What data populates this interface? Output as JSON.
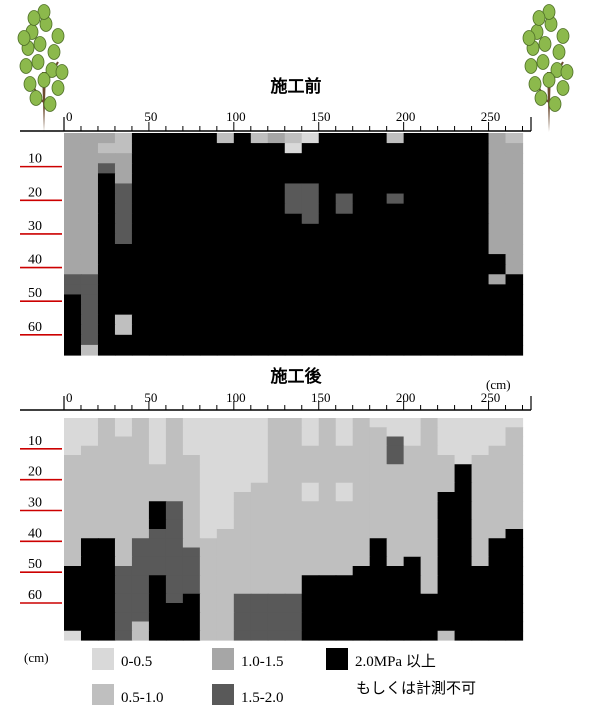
{
  "chart_data": [
    {
      "type": "heatmap",
      "title": "施工前",
      "xlabel": "",
      "ylabel": "",
      "x_ticks": [
        0,
        50,
        100,
        150,
        200,
        250
      ],
      "y_ticks": [
        10,
        20,
        30,
        40,
        50,
        60
      ],
      "xlim": [
        0,
        275
      ],
      "ylim": [
        0,
        63
      ],
      "column_width_cm": 10,
      "row_height_cm": 3,
      "classes": [
        0,
        1,
        2,
        3,
        4
      ],
      "grid": [
        [
          2,
          2,
          2,
          1,
          4,
          4,
          4,
          4,
          4,
          1,
          4,
          1,
          2,
          1,
          0,
          4,
          4,
          4,
          4,
          1,
          4,
          4,
          4,
          4,
          4,
          2,
          1
        ],
        [
          2,
          2,
          1,
          1,
          4,
          4,
          4,
          4,
          4,
          4,
          4,
          4,
          4,
          0,
          4,
          4,
          4,
          4,
          4,
          4,
          4,
          4,
          4,
          4,
          4,
          2,
          2
        ],
        [
          2,
          2,
          2,
          2,
          4,
          4,
          4,
          4,
          4,
          4,
          4,
          4,
          4,
          4,
          4,
          4,
          4,
          4,
          4,
          4,
          4,
          4,
          4,
          4,
          4,
          2,
          2
        ],
        [
          2,
          2,
          3,
          2,
          4,
          4,
          4,
          4,
          4,
          4,
          4,
          4,
          4,
          4,
          4,
          4,
          4,
          4,
          4,
          4,
          4,
          4,
          4,
          4,
          4,
          2,
          2
        ],
        [
          2,
          2,
          4,
          2,
          4,
          4,
          4,
          4,
          4,
          4,
          4,
          4,
          4,
          4,
          4,
          4,
          4,
          4,
          4,
          4,
          4,
          4,
          4,
          4,
          4,
          2,
          2
        ],
        [
          2,
          2,
          4,
          3,
          4,
          4,
          4,
          4,
          4,
          4,
          4,
          4,
          4,
          3,
          3,
          4,
          4,
          4,
          4,
          4,
          4,
          4,
          4,
          4,
          4,
          2,
          2
        ],
        [
          2,
          2,
          4,
          3,
          4,
          4,
          4,
          4,
          4,
          4,
          4,
          4,
          4,
          3,
          3,
          4,
          3,
          4,
          4,
          3,
          4,
          4,
          4,
          4,
          4,
          2,
          2
        ],
        [
          2,
          2,
          4,
          3,
          4,
          4,
          4,
          4,
          4,
          4,
          4,
          4,
          4,
          3,
          3,
          4,
          3,
          4,
          4,
          4,
          4,
          4,
          4,
          4,
          4,
          2,
          2
        ],
        [
          2,
          2,
          4,
          3,
          4,
          4,
          4,
          4,
          4,
          4,
          4,
          4,
          4,
          4,
          3,
          4,
          4,
          4,
          4,
          4,
          4,
          4,
          4,
          4,
          4,
          2,
          2
        ],
        [
          2,
          2,
          4,
          3,
          4,
          4,
          4,
          4,
          4,
          4,
          4,
          4,
          4,
          4,
          4,
          4,
          4,
          4,
          4,
          4,
          4,
          4,
          4,
          4,
          4,
          2,
          2
        ],
        [
          2,
          2,
          4,
          3,
          4,
          4,
          4,
          4,
          4,
          4,
          4,
          4,
          4,
          4,
          4,
          4,
          4,
          4,
          4,
          4,
          4,
          4,
          4,
          4,
          4,
          2,
          2
        ],
        [
          2,
          2,
          4,
          4,
          4,
          4,
          4,
          4,
          4,
          4,
          4,
          4,
          4,
          4,
          4,
          4,
          4,
          4,
          4,
          4,
          4,
          4,
          4,
          4,
          4,
          2,
          2
        ],
        [
          2,
          2,
          4,
          4,
          4,
          4,
          4,
          4,
          4,
          4,
          4,
          4,
          4,
          4,
          4,
          4,
          4,
          4,
          4,
          4,
          4,
          4,
          4,
          4,
          4,
          4,
          2
        ],
        [
          2,
          2,
          4,
          4,
          4,
          4,
          4,
          4,
          4,
          4,
          4,
          4,
          4,
          4,
          4,
          4,
          4,
          4,
          4,
          4,
          4,
          4,
          4,
          4,
          4,
          4,
          2
        ],
        [
          3,
          3,
          4,
          4,
          4,
          4,
          4,
          4,
          4,
          4,
          4,
          4,
          4,
          4,
          4,
          4,
          4,
          4,
          4,
          4,
          4,
          4,
          4,
          4,
          4,
          2,
          4
        ],
        [
          3,
          3,
          4,
          4,
          4,
          4,
          4,
          4,
          4,
          4,
          4,
          4,
          4,
          4,
          4,
          4,
          4,
          4,
          4,
          4,
          4,
          4,
          4,
          4,
          4,
          4,
          4
        ],
        [
          4,
          3,
          4,
          4,
          4,
          4,
          4,
          4,
          4,
          4,
          4,
          4,
          4,
          4,
          4,
          4,
          4,
          4,
          4,
          4,
          4,
          4,
          4,
          4,
          4,
          4,
          4
        ],
        [
          4,
          3,
          4,
          4,
          4,
          4,
          4,
          4,
          4,
          4,
          4,
          4,
          4,
          4,
          4,
          4,
          4,
          4,
          4,
          4,
          4,
          4,
          4,
          4,
          4,
          4,
          4
        ],
        [
          4,
          3,
          4,
          1,
          4,
          4,
          4,
          4,
          4,
          4,
          4,
          4,
          4,
          4,
          4,
          4,
          4,
          4,
          4,
          4,
          4,
          4,
          4,
          4,
          4,
          4,
          4
        ],
        [
          4,
          3,
          4,
          1,
          4,
          4,
          4,
          4,
          4,
          4,
          4,
          4,
          4,
          4,
          4,
          4,
          4,
          4,
          4,
          4,
          4,
          4,
          4,
          4,
          4,
          4,
          4
        ],
        [
          4,
          3,
          4,
          4,
          4,
          4,
          4,
          4,
          4,
          4,
          4,
          4,
          4,
          4,
          4,
          4,
          4,
          4,
          4,
          4,
          4,
          4,
          4,
          4,
          4,
          4,
          4
        ],
        [
          4,
          1,
          4,
          4,
          4,
          4,
          4,
          4,
          4,
          4,
          4,
          4,
          4,
          4,
          4,
          4,
          4,
          4,
          4,
          4,
          4,
          4,
          4,
          4,
          4,
          4,
          4
        ]
      ]
    },
    {
      "type": "heatmap",
      "title": "施工後",
      "xlabel": "",
      "ylabel": "",
      "x_ticks": [
        0,
        50,
        100,
        150,
        200,
        250
      ],
      "y_ticks": [
        10,
        20,
        30,
        40,
        50,
        60
      ],
      "xlim": [
        0,
        275
      ],
      "ylim": [
        0,
        63
      ],
      "column_width_cm": 10,
      "row_height_cm": 3,
      "classes": [
        0,
        1,
        2,
        3,
        4
      ],
      "grid": [
        [
          0,
          0,
          1,
          0,
          1,
          0,
          1,
          0,
          0,
          0,
          0,
          0,
          1,
          1,
          0,
          1,
          0,
          1,
          0,
          0,
          0,
          1,
          0,
          0,
          0,
          0,
          0
        ],
        [
          0,
          0,
          1,
          0,
          1,
          0,
          1,
          0,
          0,
          0,
          0,
          0,
          1,
          1,
          0,
          1,
          0,
          1,
          1,
          0,
          0,
          1,
          0,
          0,
          0,
          0,
          1
        ],
        [
          0,
          0,
          1,
          1,
          1,
          0,
          1,
          0,
          0,
          0,
          0,
          0,
          1,
          1,
          0,
          1,
          0,
          1,
          1,
          3,
          0,
          1,
          0,
          0,
          0,
          0,
          1
        ],
        [
          0,
          1,
          1,
          1,
          1,
          0,
          1,
          0,
          0,
          0,
          0,
          0,
          1,
          1,
          1,
          1,
          1,
          1,
          1,
          3,
          1,
          1,
          0,
          0,
          0,
          1,
          1
        ],
        [
          1,
          1,
          1,
          1,
          1,
          0,
          1,
          1,
          0,
          0,
          0,
          0,
          1,
          1,
          1,
          1,
          1,
          1,
          1,
          3,
          1,
          1,
          1,
          0,
          1,
          1,
          1
        ],
        [
          1,
          1,
          1,
          1,
          1,
          1,
          1,
          1,
          0,
          0,
          0,
          0,
          1,
          1,
          1,
          1,
          1,
          1,
          1,
          1,
          1,
          1,
          1,
          4,
          1,
          1,
          1
        ],
        [
          1,
          1,
          1,
          1,
          1,
          1,
          1,
          1,
          0,
          0,
          0,
          0,
          1,
          1,
          1,
          1,
          1,
          1,
          1,
          1,
          1,
          1,
          1,
          4,
          1,
          1,
          1
        ],
        [
          1,
          1,
          1,
          1,
          1,
          1,
          1,
          1,
          0,
          0,
          0,
          1,
          1,
          1,
          0,
          1,
          0,
          1,
          1,
          1,
          1,
          1,
          1,
          4,
          1,
          1,
          1
        ],
        [
          1,
          1,
          1,
          1,
          1,
          1,
          1,
          1,
          0,
          0,
          1,
          1,
          1,
          1,
          0,
          1,
          0,
          1,
          1,
          1,
          1,
          1,
          4,
          4,
          1,
          1,
          1
        ],
        [
          1,
          1,
          1,
          1,
          1,
          4,
          3,
          1,
          0,
          0,
          1,
          1,
          1,
          1,
          1,
          1,
          1,
          1,
          1,
          1,
          1,
          1,
          4,
          4,
          1,
          1,
          1
        ],
        [
          1,
          1,
          1,
          1,
          1,
          4,
          3,
          1,
          0,
          0,
          1,
          1,
          1,
          1,
          1,
          1,
          1,
          1,
          1,
          1,
          1,
          1,
          4,
          4,
          1,
          1,
          1
        ],
        [
          1,
          1,
          1,
          1,
          1,
          4,
          3,
          1,
          0,
          0,
          1,
          1,
          1,
          1,
          1,
          1,
          1,
          1,
          1,
          1,
          1,
          1,
          4,
          4,
          1,
          1,
          1
        ],
        [
          1,
          1,
          1,
          1,
          1,
          3,
          3,
          1,
          0,
          1,
          1,
          1,
          1,
          1,
          1,
          1,
          1,
          1,
          1,
          1,
          1,
          1,
          4,
          4,
          1,
          1,
          4
        ],
        [
          1,
          4,
          4,
          1,
          3,
          3,
          3,
          1,
          1,
          1,
          1,
          1,
          1,
          1,
          1,
          1,
          1,
          1,
          4,
          1,
          1,
          1,
          4,
          4,
          1,
          4,
          4
        ],
        [
          1,
          4,
          4,
          1,
          3,
          3,
          3,
          3,
          1,
          1,
          1,
          1,
          1,
          1,
          1,
          1,
          1,
          1,
          4,
          1,
          1,
          1,
          4,
          4,
          1,
          4,
          4
        ],
        [
          1,
          4,
          4,
          1,
          3,
          3,
          3,
          3,
          1,
          1,
          1,
          1,
          1,
          1,
          1,
          1,
          1,
          1,
          4,
          1,
          4,
          1,
          4,
          4,
          1,
          4,
          4
        ],
        [
          4,
          4,
          4,
          3,
          3,
          3,
          3,
          3,
          1,
          1,
          1,
          1,
          1,
          1,
          1,
          1,
          1,
          4,
          4,
          4,
          4,
          1,
          4,
          4,
          4,
          4,
          4
        ],
        [
          4,
          4,
          4,
          3,
          3,
          4,
          3,
          3,
          1,
          1,
          1,
          1,
          1,
          1,
          4,
          4,
          4,
          4,
          4,
          4,
          4,
          1,
          4,
          4,
          4,
          4,
          4
        ],
        [
          4,
          4,
          4,
          3,
          3,
          4,
          3,
          3,
          1,
          1,
          1,
          1,
          1,
          1,
          4,
          4,
          4,
          4,
          4,
          4,
          4,
          1,
          4,
          4,
          4,
          4,
          4
        ],
        [
          4,
          4,
          4,
          3,
          3,
          4,
          3,
          4,
          1,
          1,
          3,
          3,
          3,
          3,
          4,
          4,
          4,
          4,
          4,
          4,
          4,
          4,
          4,
          4,
          4,
          4,
          4
        ],
        [
          4,
          4,
          4,
          3,
          3,
          4,
          4,
          4,
          1,
          1,
          3,
          3,
          3,
          3,
          4,
          4,
          4,
          4,
          4,
          4,
          4,
          4,
          4,
          4,
          4,
          4,
          4
        ],
        [
          4,
          4,
          4,
          3,
          3,
          4,
          4,
          4,
          1,
          1,
          3,
          3,
          3,
          3,
          4,
          4,
          4,
          4,
          4,
          4,
          4,
          4,
          4,
          4,
          4,
          4,
          4
        ],
        [
          4,
          4,
          4,
          3,
          1,
          4,
          4,
          4,
          1,
          1,
          3,
          3,
          3,
          3,
          4,
          4,
          4,
          4,
          4,
          4,
          4,
          4,
          4,
          4,
          4,
          4,
          4
        ],
        [
          0,
          4,
          4,
          3,
          1,
          4,
          4,
          4,
          1,
          1,
          3,
          3,
          3,
          3,
          4,
          4,
          4,
          4,
          4,
          4,
          4,
          4,
          1,
          4,
          4,
          4,
          4
        ]
      ]
    }
  ],
  "unit_label_top": "(cm)",
  "unit_label_bottom": "(cm)",
  "legend": [
    {
      "label": "0-0.5",
      "color": "#d9d9d9"
    },
    {
      "label": "0.5-1.0",
      "color": "#bfbfbf"
    },
    {
      "label": "1.0-1.5",
      "color": "#a6a6a6"
    },
    {
      "label": "1.5-2.0",
      "color": "#595959"
    },
    {
      "label": "2.0MPa 以上",
      "label2": "もしくは計測不可",
      "color": "#000000"
    }
  ],
  "colors": {
    "depth_line": "#cc0000",
    "tree_leaf": "#8cb94c",
    "tree_trunk": "#6b4a2f",
    "axis": "#000000"
  },
  "icons": {
    "tree_left": "tree-icon",
    "tree_right": "tree-icon"
  }
}
